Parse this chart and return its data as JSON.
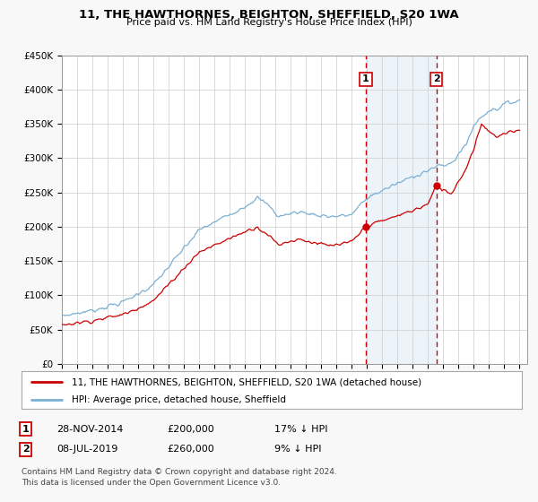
{
  "title": "11, THE HAWTHORNES, BEIGHTON, SHEFFIELD, S20 1WA",
  "subtitle": "Price paid vs. HM Land Registry's House Price Index (HPI)",
  "ylim": [
    0,
    450000
  ],
  "yticks": [
    0,
    50000,
    100000,
    150000,
    200000,
    250000,
    300000,
    350000,
    400000,
    450000
  ],
  "ytick_labels": [
    "£0",
    "£50K",
    "£100K",
    "£150K",
    "£200K",
    "£250K",
    "£300K",
    "£350K",
    "£400K",
    "£450K"
  ],
  "xlim_start": 1995.0,
  "xlim_end": 2025.5,
  "hpi_color": "#7ab0d4",
  "price_color": "#cc0000",
  "sale1_date": 2014.917,
  "sale1_price": 200000,
  "sale1_label": "1",
  "sale2_date": 2019.542,
  "sale2_price": 260000,
  "sale2_label": "2",
  "vline_color": "#cc0000",
  "shade_color": "#cce0f0",
  "legend_label1": "11, THE HAWTHORNES, BEIGHTON, SHEFFIELD, S20 1WA (detached house)",
  "legend_label2": "HPI: Average price, detached house, Sheffield",
  "footer1": "Contains HM Land Registry data © Crown copyright and database right 2024.",
  "footer2": "This data is licensed under the Open Government Licence v3.0.",
  "background_color": "#f8f8f8",
  "plot_bg_color": "#ffffff"
}
